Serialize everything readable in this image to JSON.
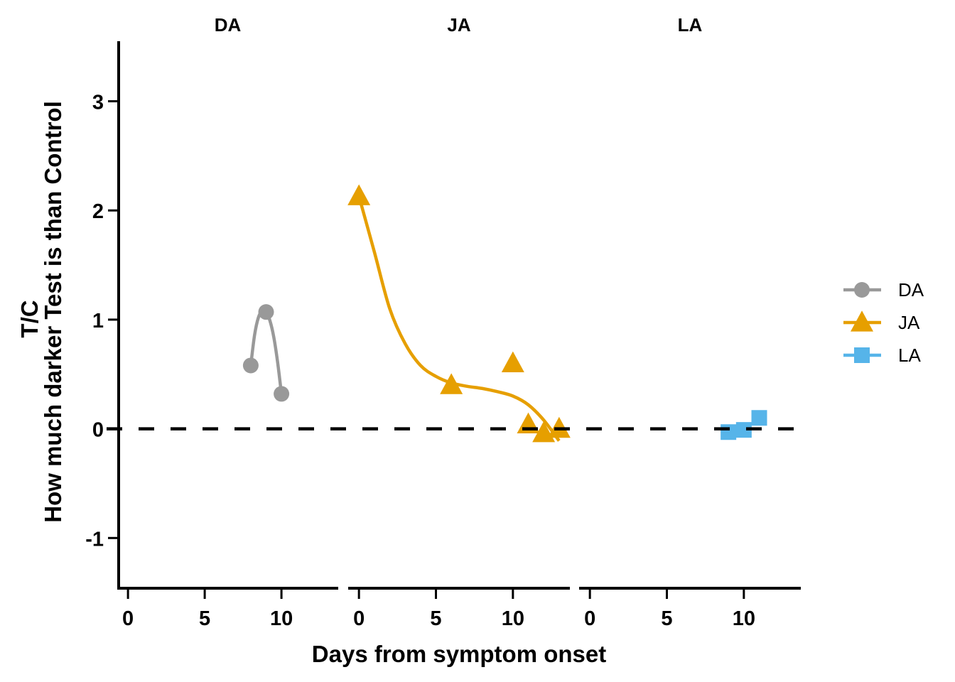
{
  "chart_data": {
    "type": "line",
    "facet_by": "group",
    "panels": [
      "DA",
      "JA",
      "LA"
    ],
    "xlabel": "Days from symptom onset",
    "ylabel_line1": "T/C",
    "ylabel_line2": "How much darker Test is than Control",
    "xlim": [
      -0.7,
      13.7
    ],
    "ylim": [
      -1.46,
      3.55
    ],
    "x_ticks": [
      0,
      5,
      10
    ],
    "x_tick_labels": [
      "0",
      "5",
      "10"
    ],
    "y_ticks": [
      -1,
      0,
      1,
      2,
      3
    ],
    "y_tick_labels": [
      "-1",
      "0",
      "1",
      "2",
      "3"
    ],
    "reference_line": {
      "y": 0,
      "style": "dashed",
      "color": "#000000"
    },
    "grid": false,
    "legend": {
      "position": "right",
      "entries": [
        "DA",
        "JA",
        "LA"
      ]
    },
    "series": [
      {
        "name": "DA",
        "panel": "DA",
        "color": "#999999",
        "marker": "circle",
        "points": [
          {
            "x": 8,
            "y": 0.58
          },
          {
            "x": 9,
            "y": 1.07
          },
          {
            "x": 10,
            "y": 0.32
          }
        ],
        "smooth": [
          {
            "x": 8,
            "y": 0.58
          },
          {
            "x": 8.25,
            "y": 0.86
          },
          {
            "x": 8.5,
            "y": 1.02
          },
          {
            "x": 8.75,
            "y": 1.08
          },
          {
            "x": 9,
            "y": 1.07
          },
          {
            "x": 9.25,
            "y": 0.99
          },
          {
            "x": 9.5,
            "y": 0.84
          },
          {
            "x": 9.75,
            "y": 0.61
          },
          {
            "x": 10,
            "y": 0.32
          }
        ]
      },
      {
        "name": "JA",
        "panel": "JA",
        "color": "#E69F00",
        "marker": "triangle",
        "points": [
          {
            "x": 0,
            "y": 2.13
          },
          {
            "x": 6,
            "y": 0.4
          },
          {
            "x": 10,
            "y": 0.6
          },
          {
            "x": 11,
            "y": 0.04
          },
          {
            "x": 12,
            "y": -0.04
          },
          {
            "x": 13,
            "y": 0.0
          }
        ],
        "smooth": [
          {
            "x": 0,
            "y": 2.13
          },
          {
            "x": 1,
            "y": 1.62
          },
          {
            "x": 2,
            "y": 1.1
          },
          {
            "x": 3,
            "y": 0.78
          },
          {
            "x": 4,
            "y": 0.58
          },
          {
            "x": 5,
            "y": 0.48
          },
          {
            "x": 6,
            "y": 0.42
          },
          {
            "x": 7,
            "y": 0.39
          },
          {
            "x": 8,
            "y": 0.37
          },
          {
            "x": 9,
            "y": 0.34
          },
          {
            "x": 10,
            "y": 0.3
          },
          {
            "x": 11,
            "y": 0.22
          },
          {
            "x": 12,
            "y": 0.08
          },
          {
            "x": 13,
            "y": -0.11
          }
        ]
      },
      {
        "name": "LA",
        "panel": "LA",
        "color": "#56B4E9",
        "marker": "square",
        "points": [
          {
            "x": 9,
            "y": -0.03
          },
          {
            "x": 10,
            "y": -0.01
          },
          {
            "x": 11,
            "y": 0.1
          }
        ],
        "smooth": []
      }
    ]
  }
}
